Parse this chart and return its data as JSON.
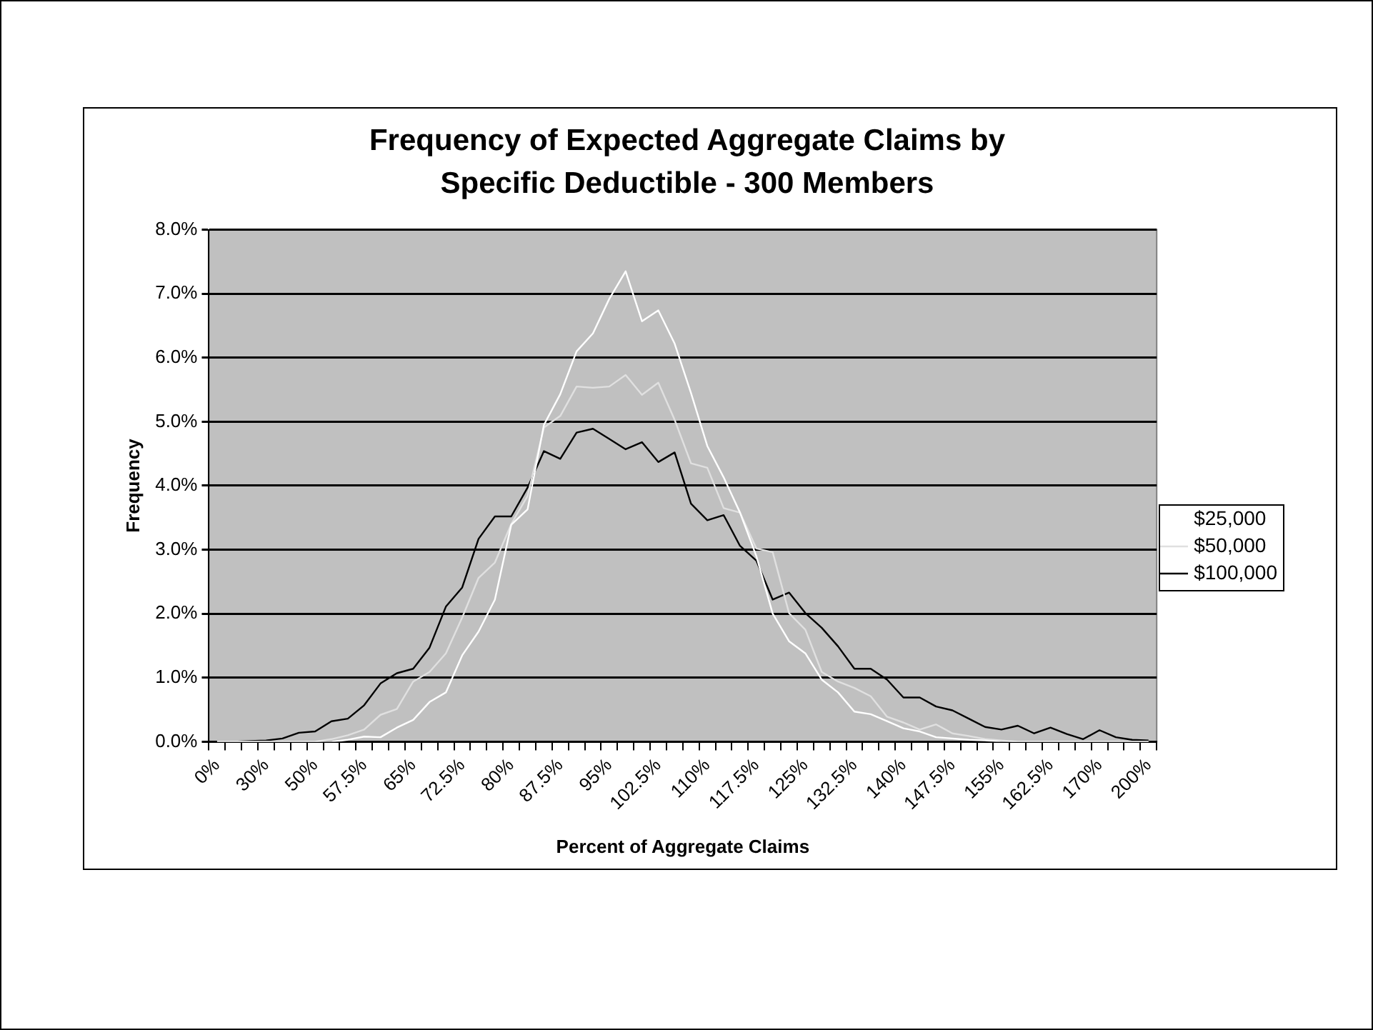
{
  "chart_data": {
    "type": "line",
    "title": "Frequency of Expected Aggregate Claims by Specific Deductible - 300 Members",
    "xlabel": "Percent of Aggregate Claims",
    "ylabel": "Frequency",
    "categories": [
      "0%",
      null,
      null,
      "30%",
      null,
      null,
      "50%",
      null,
      null,
      "57.5%",
      null,
      null,
      "65%",
      null,
      null,
      "72.5%",
      null,
      null,
      "80%",
      null,
      null,
      "87.5%",
      null,
      null,
      "95%",
      null,
      null,
      "102.5%",
      null,
      null,
      "110%",
      null,
      null,
      "117.5%",
      null,
      null,
      "125%",
      null,
      null,
      "132.5%",
      null,
      null,
      "140%",
      null,
      null,
      "147.5%",
      null,
      null,
      "155%",
      null,
      null,
      "162.5%",
      null,
      null,
      "170%",
      null,
      null,
      "200%"
    ],
    "series": [
      {
        "name": "$25,000",
        "color": "#ffffff",
        "values": [
          0,
          0,
          0,
          0,
          0,
          0,
          0,
          0,
          0.03,
          0.08,
          0.07,
          0.22,
          0.34,
          0.62,
          0.77,
          1.35,
          1.72,
          2.22,
          3.39,
          3.63,
          4.95,
          5.43,
          6.1,
          6.38,
          6.92,
          7.35,
          6.57,
          6.74,
          6.22,
          5.45,
          4.62,
          4.13,
          3.58,
          2.9,
          2.0,
          1.57,
          1.38,
          0.97,
          0.77,
          0.47,
          0.43,
          0.32,
          0.21,
          0.16,
          0.07,
          0.05,
          0.03,
          0.02,
          0,
          0,
          0,
          0,
          0,
          0,
          0,
          0,
          0,
          0
        ]
      },
      {
        "name": "$50,000",
        "color": "#e0e0e0",
        "values": [
          0,
          0,
          0,
          0,
          0,
          0,
          0,
          0.04,
          0.1,
          0.19,
          0.42,
          0.51,
          0.94,
          1.09,
          1.38,
          1.94,
          2.56,
          2.8,
          3.4,
          3.84,
          4.91,
          5.09,
          5.55,
          5.53,
          5.55,
          5.73,
          5.42,
          5.61,
          5.03,
          4.35,
          4.28,
          3.65,
          3.58,
          3.02,
          2.96,
          2.01,
          1.75,
          1.09,
          0.94,
          0.84,
          0.71,
          0.39,
          0.3,
          0.19,
          0.27,
          0.13,
          0.09,
          0.04,
          0.02,
          0,
          0,
          0,
          0,
          0,
          0,
          0,
          0,
          0
        ]
      },
      {
        "name": "$100,000",
        "color": "#000000",
        "values": [
          0,
          0,
          0.01,
          0.02,
          0.05,
          0.14,
          0.16,
          0.32,
          0.36,
          0.57,
          0.91,
          1.07,
          1.14,
          1.47,
          2.11,
          2.41,
          3.17,
          3.52,
          3.52,
          3.97,
          4.54,
          4.42,
          4.83,
          4.89,
          4.73,
          4.57,
          4.68,
          4.37,
          4.52,
          3.72,
          3.46,
          3.54,
          3.06,
          2.83,
          2.22,
          2.33,
          2.01,
          1.78,
          1.49,
          1.14,
          1.14,
          0.97,
          0.69,
          0.69,
          0.55,
          0.49,
          0.36,
          0.23,
          0.19,
          0.25,
          0.13,
          0.22,
          0.12,
          0.04,
          0.18,
          0.07,
          0.03,
          0.02
        ]
      }
    ],
    "ylim": [
      0,
      8
    ],
    "yticks": [
      {
        "value": 0,
        "label": "0.0%"
      },
      {
        "value": 1,
        "label": "1.0%"
      },
      {
        "value": 2,
        "label": "2.0%"
      },
      {
        "value": 3,
        "label": "3.0%"
      },
      {
        "value": 4,
        "label": "4.0%"
      },
      {
        "value": 5,
        "label": "5.0%"
      },
      {
        "value": 6,
        "label": "6.0%"
      },
      {
        "value": 7,
        "label": "7.0%"
      },
      {
        "value": 8,
        "label": "8.0%"
      }
    ],
    "grid": "y",
    "legend": "right",
    "marker": "none",
    "line_style": "solid"
  }
}
